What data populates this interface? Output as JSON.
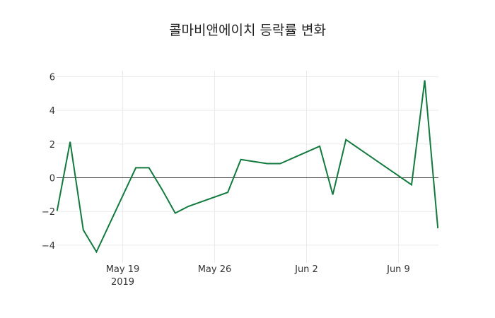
{
  "chart_data": {
    "type": "line",
    "title": "콜마비앤에이치 등락률 변화",
    "xlabel": "",
    "ylabel": "",
    "ylim": [
      -4.9,
      6.4
    ],
    "yticks": [
      6,
      4,
      2,
      0,
      -2,
      -4
    ],
    "ytick_labels": [
      "6",
      "4",
      "2",
      "0",
      "−2",
      "−4"
    ],
    "xticks": [
      "2019-05-19",
      "2019-05-26",
      "2019-06-02",
      "2019-06-09"
    ],
    "xtick_labels": [
      "May 19",
      "May 26",
      "Jun 2",
      "Jun 9"
    ],
    "xtick_sublabel": "2019",
    "grid": true,
    "line_color": "#127a3e",
    "series": [
      {
        "name": "등락률",
        "x": [
          "2019-05-14",
          "2019-05-15",
          "2019-05-16",
          "2019-05-17",
          "2019-05-20",
          "2019-05-21",
          "2019-05-22",
          "2019-05-23",
          "2019-05-24",
          "2019-05-27",
          "2019-05-28",
          "2019-05-29",
          "2019-05-30",
          "2019-05-31",
          "2019-06-03",
          "2019-06-04",
          "2019-06-05",
          "2019-06-10",
          "2019-06-11",
          "2019-06-12"
        ],
        "values": [
          -1.97,
          2.13,
          -3.1,
          -4.4,
          0.59,
          0.59,
          -0.7,
          -2.1,
          -1.7,
          -0.87,
          1.08,
          0.96,
          0.84,
          0.84,
          1.87,
          -1.0,
          2.26,
          -0.42,
          5.78,
          -3.0
        ]
      }
    ]
  }
}
